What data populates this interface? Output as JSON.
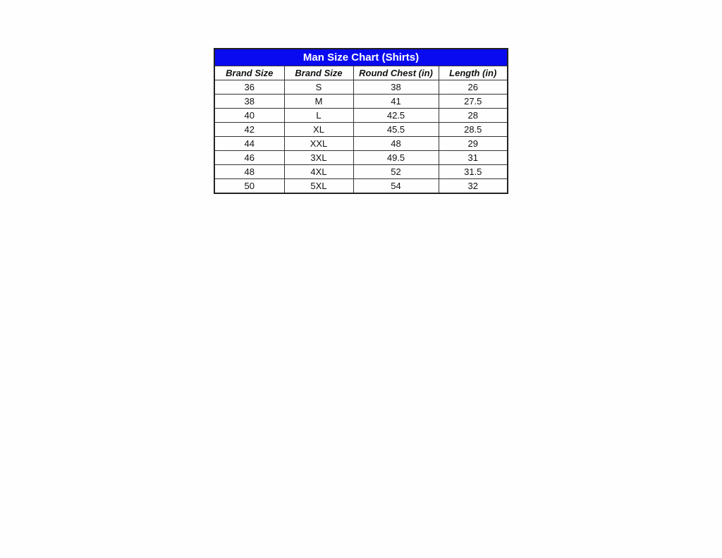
{
  "title": "Man Size Chart (Shirts)",
  "colors": {
    "title_bg": "#0a0af0",
    "title_text": "#ffffff"
  },
  "headers": [
    "Brand Size",
    "Brand Size",
    "Round Chest (in)",
    "Length (in)"
  ],
  "rows": [
    [
      "36",
      "S",
      "38",
      "26"
    ],
    [
      "38",
      "M",
      "41",
      "27.5"
    ],
    [
      "40",
      "L",
      "42.5",
      "28"
    ],
    [
      "42",
      "XL",
      "45.5",
      "28.5"
    ],
    [
      "44",
      "XXL",
      "48",
      "29"
    ],
    [
      "46",
      "3XL",
      "49.5",
      "31"
    ],
    [
      "48",
      "4XL",
      "52",
      "31.5"
    ],
    [
      "50",
      "5XL",
      "54",
      "32"
    ]
  ]
}
